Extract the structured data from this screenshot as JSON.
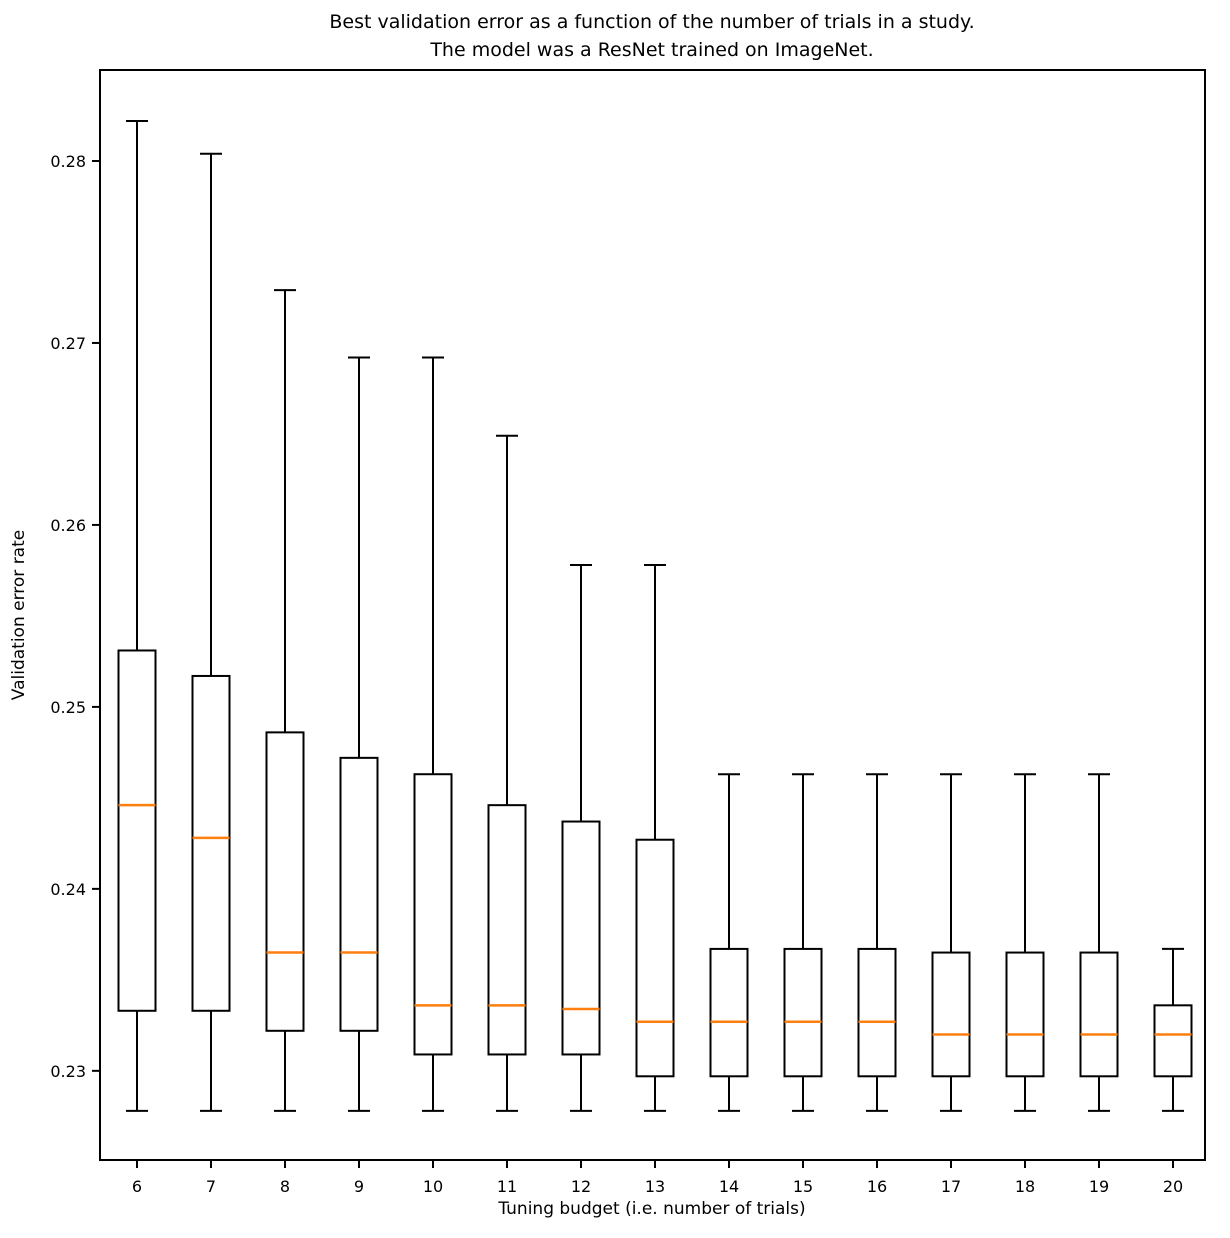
{
  "chart_data": {
    "type": "boxplot",
    "title_line1": "Best validation error as a function of the number of trials in a study.",
    "title_line2": "The model was a ResNet trained on ImageNet.",
    "xlabel": "Tuning budget (i.e. number of trials)",
    "ylabel": "Validation error rate",
    "categories": [
      "6",
      "7",
      "8",
      "9",
      "10",
      "11",
      "12",
      "13",
      "14",
      "15",
      "16",
      "17",
      "18",
      "19",
      "20"
    ],
    "ytick_labels": [
      "0.23",
      "0.24",
      "0.25",
      "0.26",
      "0.27",
      "0.28"
    ],
    "ytick_values": [
      0.23,
      0.24,
      0.25,
      0.26,
      0.27,
      0.28
    ],
    "ylim": [
      0.2251,
      0.285
    ],
    "grid": false,
    "legend": "none",
    "colors": {
      "median": "#ff7f0e",
      "box_stroke": "#000000",
      "background": "#ffffff"
    },
    "boxes": [
      {
        "budget": "6",
        "whisker_low": 0.2278,
        "q1": 0.2333,
        "median": 0.2446,
        "q3": 0.2531,
        "whisker_high": 0.2822
      },
      {
        "budget": "7",
        "whisker_low": 0.2278,
        "q1": 0.2333,
        "median": 0.2428,
        "q3": 0.2517,
        "whisker_high": 0.2804
      },
      {
        "budget": "8",
        "whisker_low": 0.2278,
        "q1": 0.2322,
        "median": 0.2365,
        "q3": 0.2486,
        "whisker_high": 0.2729
      },
      {
        "budget": "9",
        "whisker_low": 0.2278,
        "q1": 0.2322,
        "median": 0.2365,
        "q3": 0.2472,
        "whisker_high": 0.2692
      },
      {
        "budget": "10",
        "whisker_low": 0.2278,
        "q1": 0.2309,
        "median": 0.2336,
        "q3": 0.2463,
        "whisker_high": 0.2692
      },
      {
        "budget": "11",
        "whisker_low": 0.2278,
        "q1": 0.2309,
        "median": 0.2336,
        "q3": 0.2446,
        "whisker_high": 0.2649
      },
      {
        "budget": "12",
        "whisker_low": 0.2278,
        "q1": 0.2309,
        "median": 0.2334,
        "q3": 0.2437,
        "whisker_high": 0.2578
      },
      {
        "budget": "13",
        "whisker_low": 0.2278,
        "q1": 0.2297,
        "median": 0.2327,
        "q3": 0.2427,
        "whisker_high": 0.2578
      },
      {
        "budget": "14",
        "whisker_low": 0.2278,
        "q1": 0.2297,
        "median": 0.2327,
        "q3": 0.2367,
        "whisker_high": 0.2463
      },
      {
        "budget": "15",
        "whisker_low": 0.2278,
        "q1": 0.2297,
        "median": 0.2327,
        "q3": 0.2367,
        "whisker_high": 0.2463
      },
      {
        "budget": "16",
        "whisker_low": 0.2278,
        "q1": 0.2297,
        "median": 0.2327,
        "q3": 0.2367,
        "whisker_high": 0.2463
      },
      {
        "budget": "17",
        "whisker_low": 0.2278,
        "q1": 0.2297,
        "median": 0.232,
        "q3": 0.2365,
        "whisker_high": 0.2463
      },
      {
        "budget": "18",
        "whisker_low": 0.2278,
        "q1": 0.2297,
        "median": 0.232,
        "q3": 0.2365,
        "whisker_high": 0.2463
      },
      {
        "budget": "19",
        "whisker_low": 0.2278,
        "q1": 0.2297,
        "median": 0.232,
        "q3": 0.2365,
        "whisker_high": 0.2463
      },
      {
        "budget": "20",
        "whisker_low": 0.2278,
        "q1": 0.2297,
        "median": 0.232,
        "q3": 0.2336,
        "whisker_high": 0.2367
      }
    ]
  }
}
